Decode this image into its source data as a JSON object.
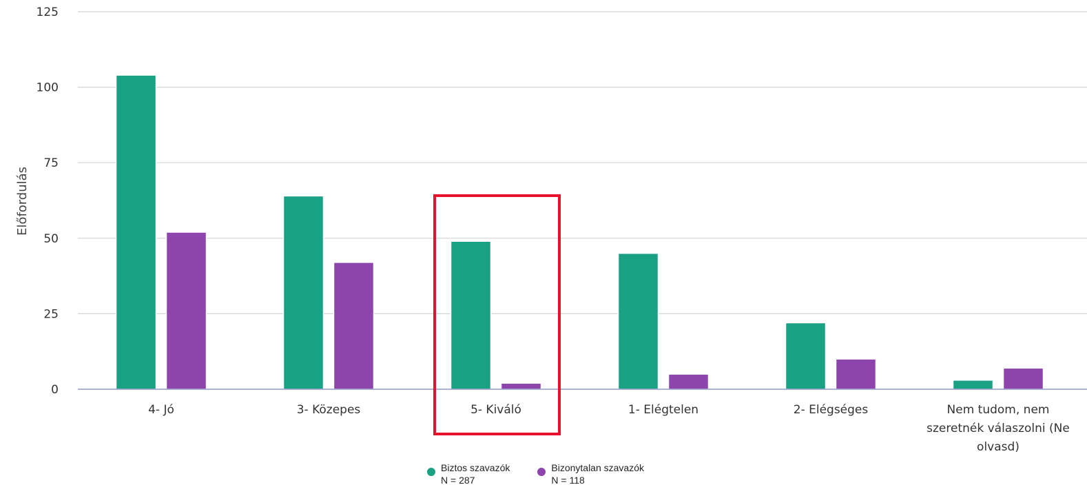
{
  "chart_data": {
    "type": "bar",
    "ylabel": "Előfordulás",
    "ylim": [
      0,
      125
    ],
    "yticks": [
      "0",
      "25",
      "50",
      "75",
      "100",
      "125"
    ],
    "categories": [
      "4- Jó",
      "3- Közepes",
      "5- Kiváló",
      "1- Elégtelen",
      "2- Elégséges",
      "Nem tudom, nem szeretnék válaszolni (Ne olvasd)"
    ],
    "category_lines": [
      [
        "4- Jó"
      ],
      [
        "3- Közepes"
      ],
      [
        "5- Kiváló"
      ],
      [
        "1- Elégtelen"
      ],
      [
        "2- Elégséges"
      ],
      [
        "Nem tudom, nem",
        "szeretnék válaszolni (Ne",
        "olvasd)"
      ]
    ],
    "series": [
      {
        "name": "Biztos szavazók",
        "n_label": "N = 287",
        "color": "#1aa083",
        "values": [
          104,
          64,
          49,
          45,
          22,
          3
        ]
      },
      {
        "name": "Bizonytalan szavazók",
        "n_label": "N = 118",
        "color": "#8e44ad",
        "values": [
          52,
          42,
          2,
          5,
          10,
          7
        ]
      }
    ],
    "highlight_category": "5- Kiváló",
    "highlight_color": "#e8112d",
    "grid": true,
    "legend_position": "bottom-center"
  }
}
